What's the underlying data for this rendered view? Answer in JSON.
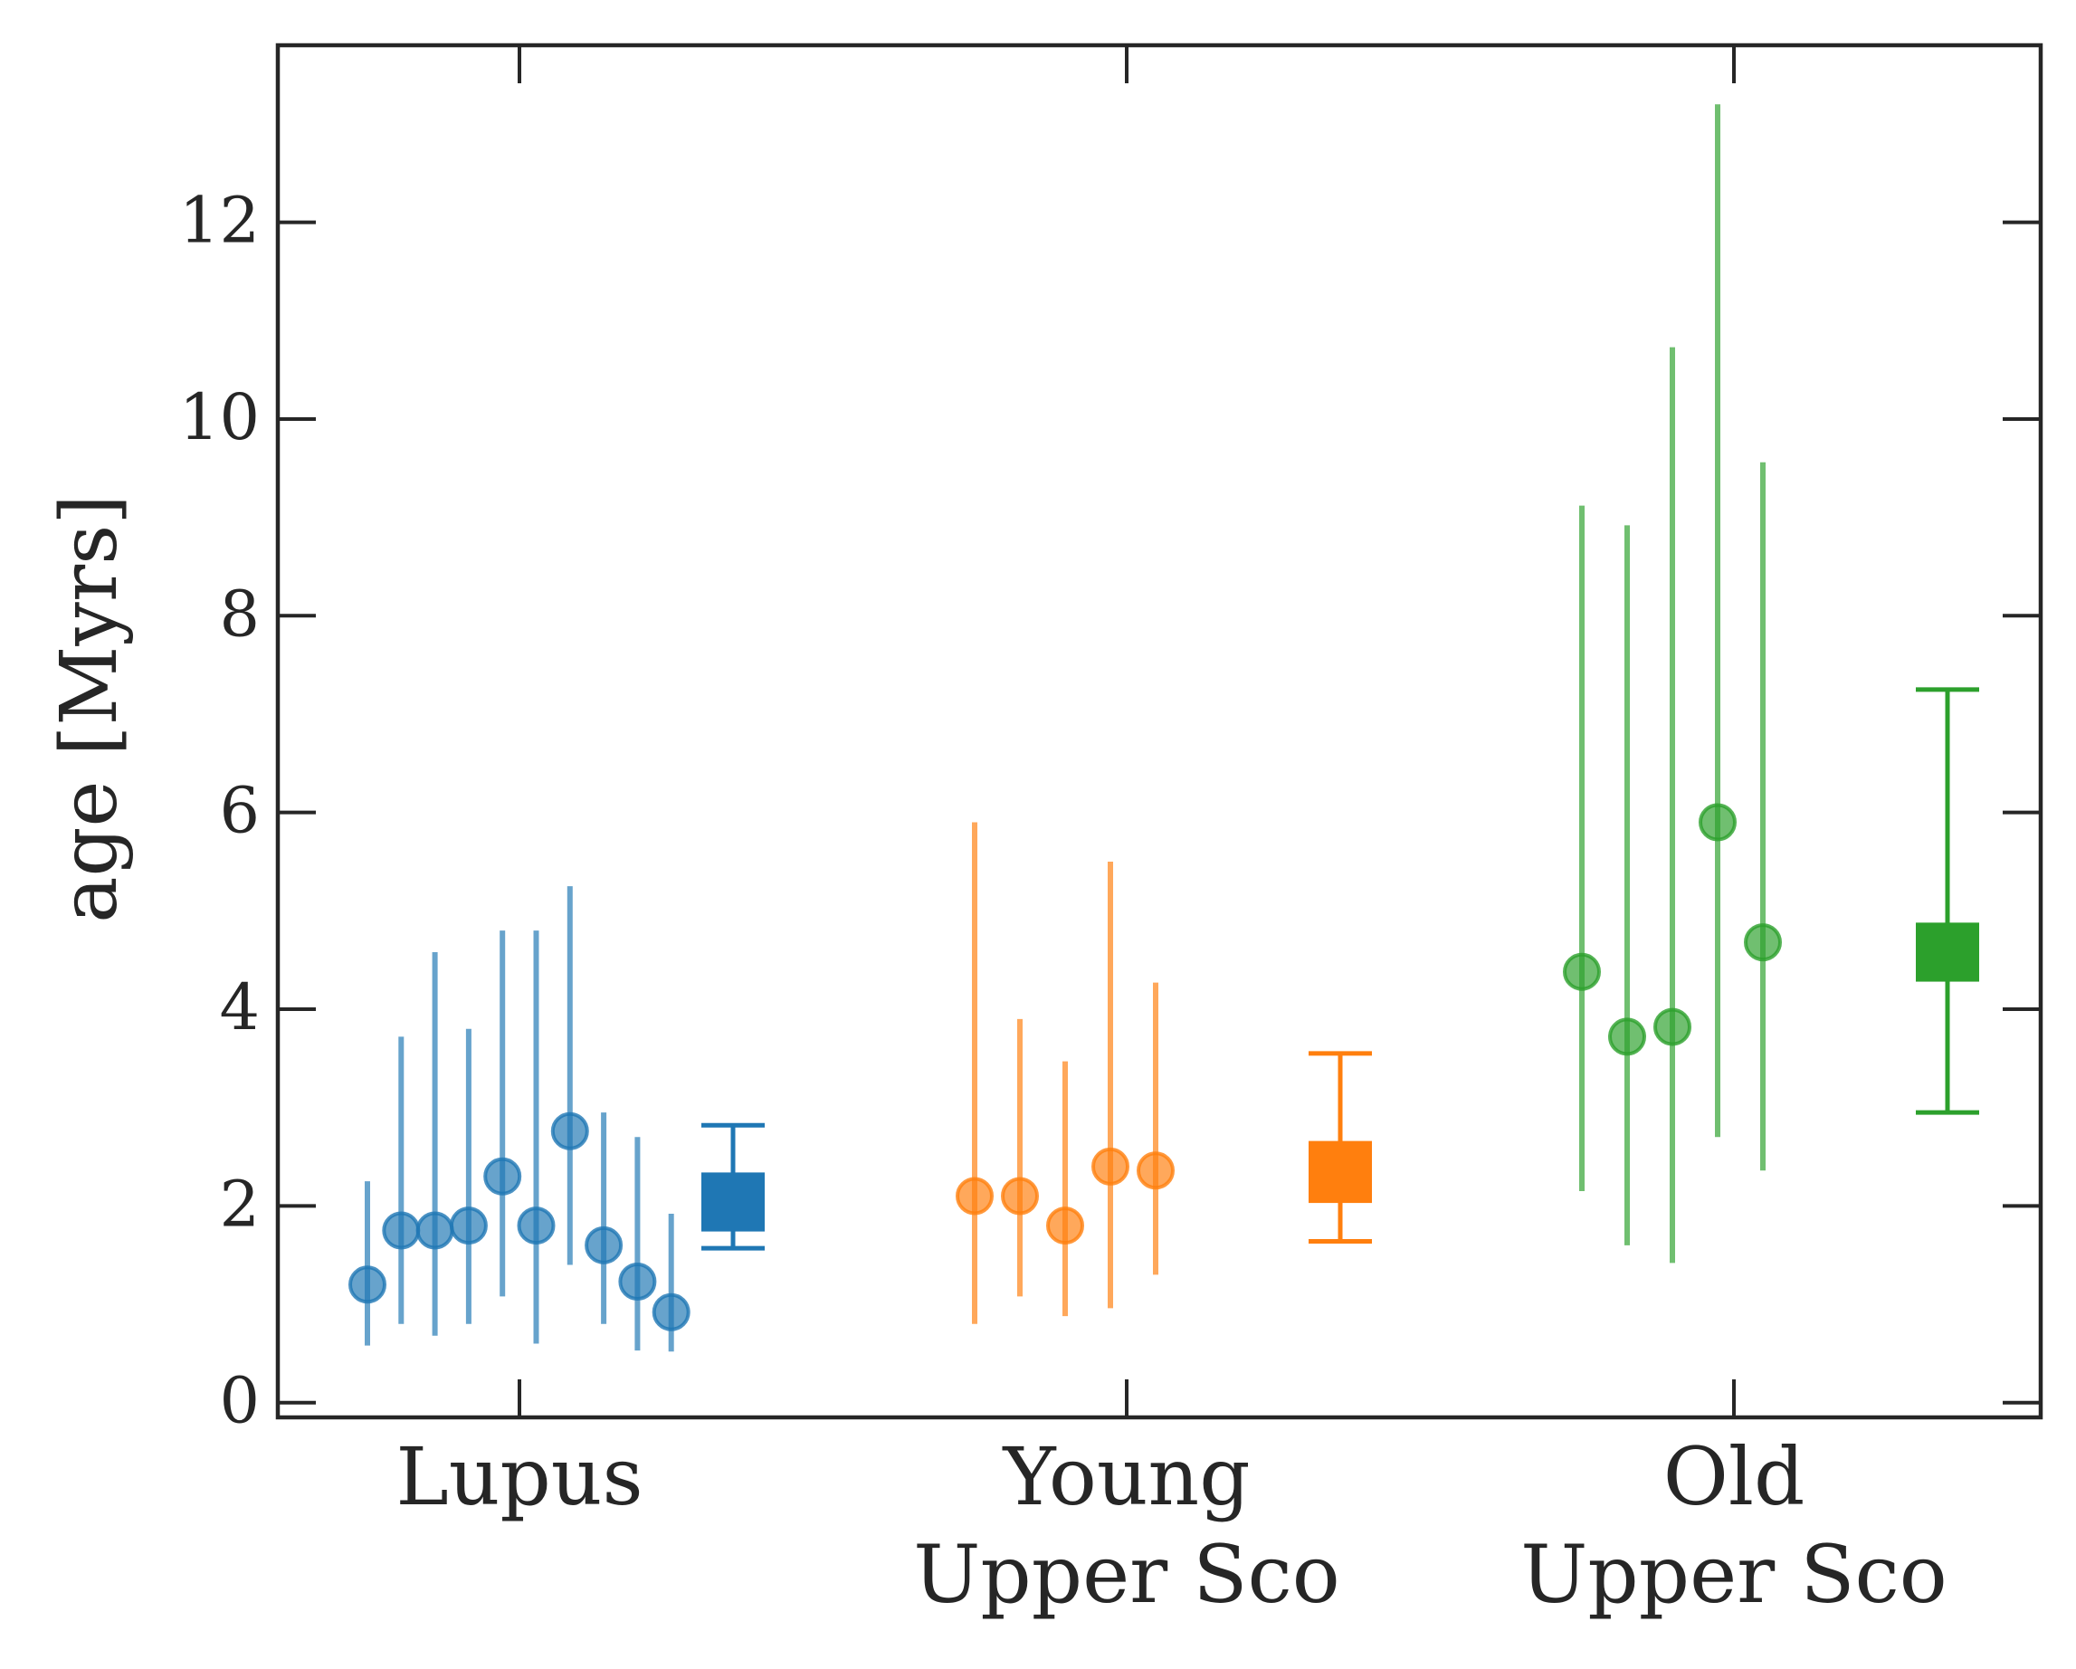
{
  "chart_data": {
    "type": "scatter",
    "title": "",
    "xlabel": "",
    "ylabel": "age [Myrs]",
    "ylim": [
      -0.15,
      13.8
    ],
    "yticks": [
      0,
      2,
      4,
      6,
      8,
      10,
      12
    ],
    "grid": false,
    "legend": "none",
    "categories": [
      {
        "lines": [
          "Lupus"
        ]
      },
      {
        "lines": [
          "Young",
          "Upper Sco"
        ]
      },
      {
        "lines": [
          "Old",
          "Upper Sco"
        ]
      }
    ],
    "groups": [
      {
        "category": "Lupus",
        "color": "#1f77b4",
        "stars": [
          {
            "age": 1.2,
            "low": 0.58,
            "high": 2.25
          },
          {
            "age": 1.75,
            "low": 0.8,
            "high": 3.72
          },
          {
            "age": 1.75,
            "low": 0.68,
            "high": 4.58
          },
          {
            "age": 1.8,
            "low": 0.8,
            "high": 3.8
          },
          {
            "age": 2.3,
            "low": 1.08,
            "high": 4.8
          },
          {
            "age": 1.8,
            "low": 0.6,
            "high": 4.8
          },
          {
            "age": 2.76,
            "low": 1.4,
            "high": 5.25
          },
          {
            "age": 1.6,
            "low": 0.8,
            "high": 2.95
          },
          {
            "age": 1.23,
            "low": 0.53,
            "high": 2.7
          },
          {
            "age": 0.92,
            "low": 0.52,
            "high": 1.92
          }
        ],
        "mean": {
          "age": 2.05,
          "low": 1.57,
          "high": 2.82,
          "box_low": 1.74,
          "box_high": 2.34
        }
      },
      {
        "category": "Young Upper Sco",
        "color": "#ff7f0e",
        "stars": [
          {
            "age": 2.1,
            "low": 0.8,
            "high": 5.9
          },
          {
            "age": 2.1,
            "low": 1.08,
            "high": 3.9
          },
          {
            "age": 1.8,
            "low": 0.88,
            "high": 3.47
          },
          {
            "age": 2.4,
            "low": 0.96,
            "high": 5.5
          },
          {
            "age": 2.36,
            "low": 1.3,
            "high": 4.27
          }
        ],
        "mean": {
          "age": 2.35,
          "low": 1.64,
          "high": 3.55,
          "box_low": 2.03,
          "box_high": 2.66
        }
      },
      {
        "category": "Old Upper Sco",
        "color": "#2ca02c",
        "stars": [
          {
            "age": 4.38,
            "low": 2.15,
            "high": 9.12
          },
          {
            "age": 3.72,
            "low": 1.6,
            "high": 8.92
          },
          {
            "age": 3.82,
            "low": 1.42,
            "high": 10.73
          },
          {
            "age": 5.9,
            "low": 2.7,
            "high": 13.2
          },
          {
            "age": 4.68,
            "low": 2.36,
            "high": 9.56
          }
        ],
        "mean": {
          "age": 4.58,
          "low": 2.95,
          "high": 7.25,
          "box_low": 4.28,
          "box_high": 4.88
        }
      }
    ]
  }
}
